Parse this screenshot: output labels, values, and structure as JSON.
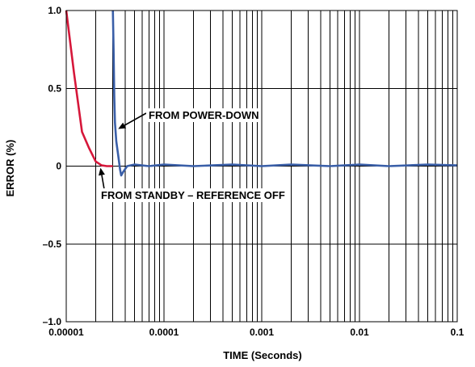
{
  "chart_data": {
    "type": "line",
    "xlabel": "TIME (Seconds)",
    "ylabel": "ERROR (%)",
    "x_scale": "log",
    "xlim": [
      1e-05,
      0.1
    ],
    "ylim": [
      -1.0,
      1.0
    ],
    "grid": true,
    "x_ticks": [
      1e-05,
      0.0001,
      0.001,
      0.01,
      0.1
    ],
    "x_tick_labels": [
      "0.00001",
      "0.0001",
      "0.001",
      "0.01",
      "0.1"
    ],
    "y_ticks": [
      1.0,
      0.5,
      0,
      -0.5,
      -1.0
    ],
    "y_tick_labels": [
      "1.0",
      "0.5",
      "0",
      "–0.5",
      "–1.0"
    ],
    "series": [
      {
        "color": "#d6173a",
        "x": [
          1e-05,
          1.2e-05,
          1.45e-05,
          1.7e-05,
          2e-05,
          2.3e-05,
          2.6e-05,
          3e-05
        ],
        "y": [
          1.0,
          0.6,
          0.22,
          0.12,
          0.03,
          0.005,
          0.0,
          0.0
        ]
      },
      {
        "color": "#3a5fa8",
        "x": [
          3e-05,
          3.05e-05,
          3.1e-05,
          3.15e-05,
          3.25e-05,
          3.4e-05,
          3.55e-05,
          3.65e-05,
          3.8e-05,
          4.2e-05,
          5e-05,
          7e-05,
          0.0001,
          0.0002,
          0.0005,
          0.001,
          0.002,
          0.005,
          0.01,
          0.02,
          0.05,
          0.1
        ],
        "y": [
          1.0,
          0.75,
          0.45,
          0.28,
          0.16,
          0.07,
          -0.02,
          -0.06,
          -0.04,
          0.0,
          0.01,
          0.0,
          0.01,
          0.0,
          0.01,
          0.0,
          0.01,
          0.0,
          0.01,
          0.0,
          0.01,
          0.005
        ]
      }
    ],
    "annotations": [
      {
        "text": "FROM POWER-DOWN",
        "arrow_to": [
          3.15e-05,
          0.27
        ]
      },
      {
        "text": "FROM STANDBY – REFERENCE OFF",
        "arrow_to": [
          2e-05,
          0.02
        ]
      }
    ]
  }
}
